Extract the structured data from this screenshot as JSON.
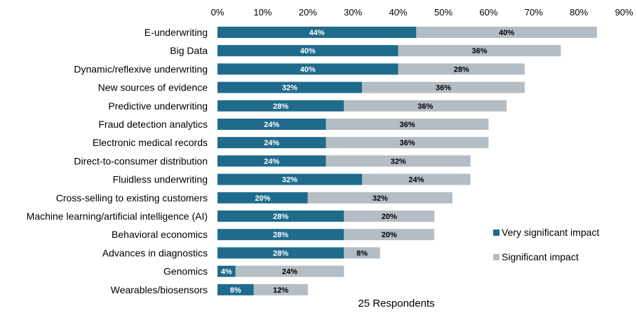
{
  "chart_data": {
    "type": "bar",
    "orientation": "horizontal",
    "stacked": true,
    "categories": [
      "E-underwriting",
      "Big Data",
      "Dynamic/reflexive underwriting",
      "New sources of evidence",
      "Predictive underwriting",
      "Fraud detection analytics",
      "Electronic medical records",
      "Direct-to-consumer distribution",
      "Fluidless underwriting",
      "Cross-selling to existing customers",
      "Machine learning/artificial intelligence (AI)",
      "Behavioral economics",
      "Advances in diagnostics",
      "Genomics",
      "Wearables/biosensors"
    ],
    "series": [
      {
        "name": "Very significant impact",
        "color": "#1f6b8c",
        "values": [
          44,
          40,
          40,
          32,
          28,
          24,
          24,
          24,
          32,
          20,
          28,
          28,
          28,
          4,
          8
        ]
      },
      {
        "name": "Significant impact",
        "color": "#b4bcc4",
        "values": [
          40,
          36,
          28,
          36,
          36,
          36,
          36,
          32,
          24,
          32,
          20,
          20,
          8,
          24,
          12
        ]
      }
    ],
    "xlim": [
      0,
      90
    ],
    "x_ticks": [
      "0%",
      "10%",
      "20%",
      "30%",
      "40%",
      "50%",
      "60%",
      "70%",
      "80%",
      "90%"
    ],
    "x_axis_position": "top",
    "value_suffix": "%",
    "legend_position": "bottom-right",
    "caption": "25 Respondents",
    "grid": false
  }
}
